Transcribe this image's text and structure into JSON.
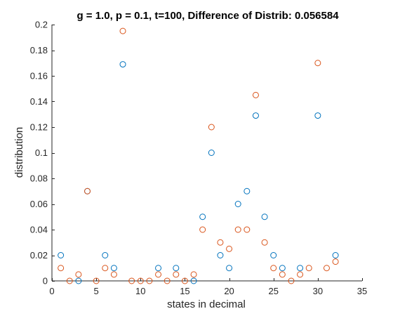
{
  "chart_data": {
    "type": "scatter",
    "title": "g = 1.0, p = 0.1, t=100, Difference of Distrib: 0.056584",
    "xlabel": "states in decimal",
    "ylabel": "distribution",
    "xlim": [
      0,
      35
    ],
    "ylim": [
      0,
      0.2
    ],
    "xticks": [
      0,
      5,
      10,
      15,
      20,
      25,
      30,
      35
    ],
    "xtick_labels": [
      "0",
      "5",
      "10",
      "15",
      "20",
      "25",
      "30",
      "35"
    ],
    "yticks": [
      0,
      0.02,
      0.04,
      0.06,
      0.08,
      0.1,
      0.12,
      0.14,
      0.16,
      0.18,
      0.2
    ],
    "ytick_labels": [
      "0",
      "0.02",
      "0.04",
      "0.06",
      "0.08",
      "0.1",
      "0.12",
      "0.14",
      "0.16",
      "0.18",
      "0.2"
    ],
    "grid": false,
    "box": "left-bottom",
    "marker": "open-circle",
    "series": [
      {
        "color": "#0072BD",
        "points": [
          [
            1,
            0.02
          ],
          [
            3,
            0
          ],
          [
            4,
            0.07
          ],
          [
            6,
            0.02
          ],
          [
            7,
            0.01
          ],
          [
            8,
            0.169
          ],
          [
            12,
            0.01
          ],
          [
            14,
            0.01
          ],
          [
            16,
            0
          ],
          [
            17,
            0.05
          ],
          [
            18,
            0.1
          ],
          [
            19,
            0.02
          ],
          [
            20,
            0.01
          ],
          [
            21,
            0.06
          ],
          [
            22,
            0.07
          ],
          [
            23,
            0.129
          ],
          [
            24,
            0.05
          ],
          [
            25,
            0.02
          ],
          [
            26,
            0.01
          ],
          [
            28,
            0.01
          ],
          [
            30,
            0.129
          ],
          [
            32,
            0.02
          ]
        ]
      },
      {
        "color": "#D95319",
        "points": [
          [
            1,
            0.01
          ],
          [
            2,
            0
          ],
          [
            3,
            0.005
          ],
          [
            4,
            0.07
          ],
          [
            5,
            0
          ],
          [
            6,
            0.01
          ],
          [
            7,
            0.005
          ],
          [
            8,
            0.195
          ],
          [
            9,
            0
          ],
          [
            10,
            0
          ],
          [
            11,
            0
          ],
          [
            12,
            0.005
          ],
          [
            13,
            0
          ],
          [
            14,
            0.005
          ],
          [
            15,
            0
          ],
          [
            16,
            0.005
          ],
          [
            17,
            0.04
          ],
          [
            18,
            0.12
          ],
          [
            19,
            0.03
          ],
          [
            20,
            0.025
          ],
          [
            21,
            0.04
          ],
          [
            22,
            0.04
          ],
          [
            23,
            0.145
          ],
          [
            24,
            0.03
          ],
          [
            25,
            0.01
          ],
          [
            26,
            0.005
          ],
          [
            27,
            0
          ],
          [
            28,
            0.005
          ],
          [
            29,
            0.01
          ],
          [
            30,
            0.17
          ],
          [
            31,
            0.01
          ],
          [
            32,
            0.015
          ]
        ]
      }
    ]
  }
}
